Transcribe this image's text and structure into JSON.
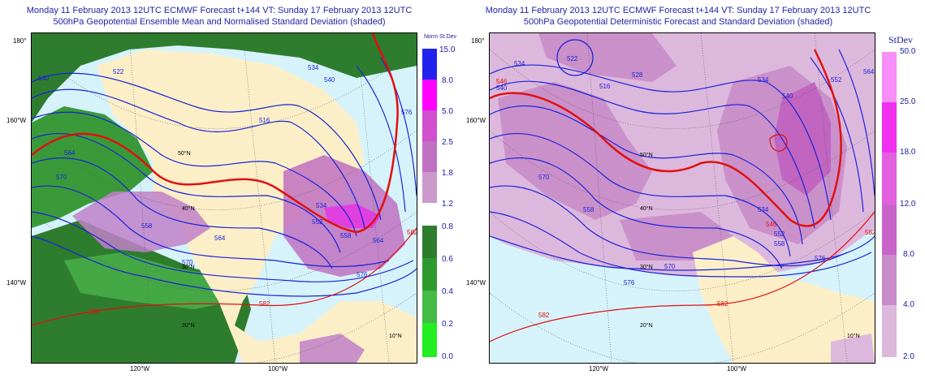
{
  "left": {
    "title1": "Monday 11 February 2013 12UTC ECMWF Forecast t+144  VT: Sunday 17 February 2013 12UTC",
    "title2": "500hPa Geopotential Ensemble Mean and Normalised Standard Deviation (shaded)",
    "colorbar_title": "Norm St.Dev",
    "colorbar_labels": [
      "15.0",
      "8.0",
      "5.0",
      "2.5",
      "1.8",
      "1.2",
      "0.8",
      "0.6",
      "0.4",
      "0.2",
      "0.0"
    ],
    "colorbar_colors": [
      "#2222ee",
      "#ff00ff",
      "#d050d0",
      "#c070c0",
      "#cc99cc",
      "#ffffff",
      "#2e7d2e",
      "#2e9a2e",
      "#44bb44",
      "#22dd22"
    ],
    "lat_labels": [
      "180°",
      "160°W",
      "140°W"
    ],
    "lon_labels": [
      "120°W",
      "100°W"
    ],
    "grid_labels": [
      "50°N",
      "40°N",
      "30°N",
      "20°N",
      "10°N"
    ]
  },
  "right": {
    "title1": "Monday 11 February 2013 12UTC ECMWF Forecast t+144  VT: Sunday 17 February 2013 12UTC",
    "title2": "500hPa Geopotential Deterministic Forecast and Standard Deviation (shaded)",
    "colorbar_title": "StDev",
    "colorbar_labels": [
      "50.0",
      "25.0",
      "18.0",
      "12.0",
      "8.0",
      "4.0",
      "2.0"
    ],
    "colorbar_colors": [
      "#f88ef8",
      "#f030f0",
      "#e060e0",
      "#c864c8",
      "#c88cc8",
      "#ddb8dd"
    ],
    "lat_labels": [
      "180°",
      "160°W",
      "140°W"
    ],
    "lon_labels": [
      "120°W",
      "100°W"
    ],
    "grid_labels": [
      "50°N",
      "40°N",
      "30°N",
      "20°N",
      "10°N"
    ]
  },
  "contour_labels": [
    "522",
    "528",
    "534",
    "540",
    "546",
    "552",
    "558",
    "564",
    "570",
    "576",
    "582",
    "516"
  ]
}
